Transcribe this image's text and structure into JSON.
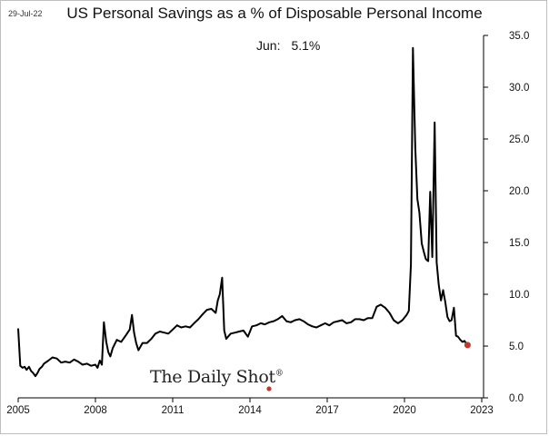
{
  "header": {
    "date": "29-Jul-22",
    "title": "US Personal Savings as a % of Disposable Personal Income"
  },
  "annotation": {
    "label": "Jun:",
    "value": "5.1%"
  },
  "watermark": {
    "text": "The Daily Shot",
    "mark": "®"
  },
  "chart_data": {
    "type": "line",
    "title": "US Personal Savings as a % of Disposable Personal Income",
    "xlabel": "",
    "ylabel": "",
    "xlim": [
      2005,
      2023
    ],
    "ylim": [
      0,
      35
    ],
    "x_ticks": [
      "2005",
      "2008",
      "2011",
      "2014",
      "2017",
      "2020",
      "2023"
    ],
    "y_ticks": [
      "0.0",
      "5.0",
      "10.0",
      "15.0",
      "20.0",
      "25.0",
      "30.0",
      "35.0"
    ],
    "y_axis_side": "right",
    "grid": false,
    "line_color": "#000000",
    "endpoint_color": "#c0392b",
    "last_point": {
      "x": 2022.45,
      "y": 5.1
    },
    "series": [
      {
        "values": [
          [
            2005.0,
            6.7
          ],
          [
            2005.08,
            3.1
          ],
          [
            2005.17,
            2.9
          ],
          [
            2005.25,
            3.0
          ],
          [
            2005.33,
            2.7
          ],
          [
            2005.42,
            3.0
          ],
          [
            2005.5,
            2.6
          ],
          [
            2005.58,
            2.4
          ],
          [
            2005.67,
            2.1
          ],
          [
            2005.75,
            2.4
          ],
          [
            2005.83,
            2.8
          ],
          [
            2005.92,
            3.0
          ],
          [
            2006.0,
            3.3
          ],
          [
            2006.17,
            3.6
          ],
          [
            2006.33,
            3.9
          ],
          [
            2006.5,
            3.8
          ],
          [
            2006.67,
            3.4
          ],
          [
            2006.83,
            3.5
          ],
          [
            2007.0,
            3.4
          ],
          [
            2007.17,
            3.7
          ],
          [
            2007.33,
            3.5
          ],
          [
            2007.5,
            3.2
          ],
          [
            2007.67,
            3.3
          ],
          [
            2007.83,
            3.1
          ],
          [
            2008.0,
            3.2
          ],
          [
            2008.08,
            2.9
          ],
          [
            2008.17,
            3.6
          ],
          [
            2008.25,
            3.2
          ],
          [
            2008.33,
            7.3
          ],
          [
            2008.42,
            5.4
          ],
          [
            2008.5,
            4.4
          ],
          [
            2008.58,
            4.0
          ],
          [
            2008.67,
            4.8
          ],
          [
            2008.83,
            5.6
          ],
          [
            2009.0,
            5.4
          ],
          [
            2009.17,
            6.0
          ],
          [
            2009.33,
            6.6
          ],
          [
            2009.42,
            8.0
          ],
          [
            2009.5,
            6.3
          ],
          [
            2009.58,
            5.3
          ],
          [
            2009.67,
            4.6
          ],
          [
            2009.83,
            5.3
          ],
          [
            2010.0,
            5.3
          ],
          [
            2010.17,
            5.7
          ],
          [
            2010.33,
            6.2
          ],
          [
            2010.5,
            6.4
          ],
          [
            2010.67,
            6.3
          ],
          [
            2010.83,
            6.2
          ],
          [
            2011.0,
            6.6
          ],
          [
            2011.17,
            7.0
          ],
          [
            2011.33,
            6.8
          ],
          [
            2011.5,
            6.9
          ],
          [
            2011.67,
            6.8
          ],
          [
            2011.83,
            7.2
          ],
          [
            2012.0,
            7.6
          ],
          [
            2012.17,
            8.1
          ],
          [
            2012.33,
            8.5
          ],
          [
            2012.5,
            8.6
          ],
          [
            2012.67,
            8.2
          ],
          [
            2012.75,
            9.4
          ],
          [
            2012.83,
            10.0
          ],
          [
            2012.92,
            11.6
          ],
          [
            2013.0,
            6.5
          ],
          [
            2013.08,
            5.7
          ],
          [
            2013.25,
            6.2
          ],
          [
            2013.42,
            6.3
          ],
          [
            2013.58,
            6.4
          ],
          [
            2013.75,
            6.5
          ],
          [
            2013.92,
            5.9
          ],
          [
            2014.08,
            6.9
          ],
          [
            2014.25,
            7.0
          ],
          [
            2014.42,
            7.2
          ],
          [
            2014.58,
            7.1
          ],
          [
            2014.75,
            7.3
          ],
          [
            2014.92,
            7.4
          ],
          [
            2015.08,
            7.6
          ],
          [
            2015.25,
            7.9
          ],
          [
            2015.42,
            7.4
          ],
          [
            2015.58,
            7.3
          ],
          [
            2015.75,
            7.5
          ],
          [
            2015.92,
            7.6
          ],
          [
            2016.08,
            7.4
          ],
          [
            2016.25,
            7.1
          ],
          [
            2016.42,
            6.9
          ],
          [
            2016.58,
            6.8
          ],
          [
            2016.75,
            7.0
          ],
          [
            2016.92,
            7.2
          ],
          [
            2017.08,
            7.0
          ],
          [
            2017.25,
            7.3
          ],
          [
            2017.42,
            7.4
          ],
          [
            2017.58,
            7.5
          ],
          [
            2017.75,
            7.2
          ],
          [
            2017.92,
            7.3
          ],
          [
            2018.08,
            7.6
          ],
          [
            2018.25,
            7.6
          ],
          [
            2018.42,
            7.5
          ],
          [
            2018.58,
            7.7
          ],
          [
            2018.75,
            7.7
          ],
          [
            2018.92,
            8.8
          ],
          [
            2019.08,
            9.0
          ],
          [
            2019.25,
            8.7
          ],
          [
            2019.42,
            8.2
          ],
          [
            2019.58,
            7.5
          ],
          [
            2019.75,
            7.2
          ],
          [
            2019.92,
            7.5
          ],
          [
            2020.08,
            8.0
          ],
          [
            2020.17,
            8.4
          ],
          [
            2020.25,
            12.9
          ],
          [
            2020.33,
            33.8
          ],
          [
            2020.42,
            24.1
          ],
          [
            2020.5,
            19.2
          ],
          [
            2020.58,
            17.9
          ],
          [
            2020.67,
            14.9
          ],
          [
            2020.75,
            14.1
          ],
          [
            2020.83,
            13.4
          ],
          [
            2020.92,
            13.2
          ],
          [
            2021.0,
            19.9
          ],
          [
            2021.08,
            13.6
          ],
          [
            2021.17,
            26.6
          ],
          [
            2021.25,
            13.1
          ],
          [
            2021.33,
            10.9
          ],
          [
            2021.42,
            9.4
          ],
          [
            2021.5,
            10.4
          ],
          [
            2021.58,
            9.3
          ],
          [
            2021.67,
            7.8
          ],
          [
            2021.75,
            7.4
          ],
          [
            2021.83,
            7.5
          ],
          [
            2021.92,
            8.7
          ],
          [
            2022.0,
            6.0
          ],
          [
            2022.08,
            5.9
          ],
          [
            2022.17,
            5.6
          ],
          [
            2022.25,
            5.4
          ],
          [
            2022.33,
            5.5
          ],
          [
            2022.45,
            5.1
          ]
        ]
      }
    ]
  }
}
